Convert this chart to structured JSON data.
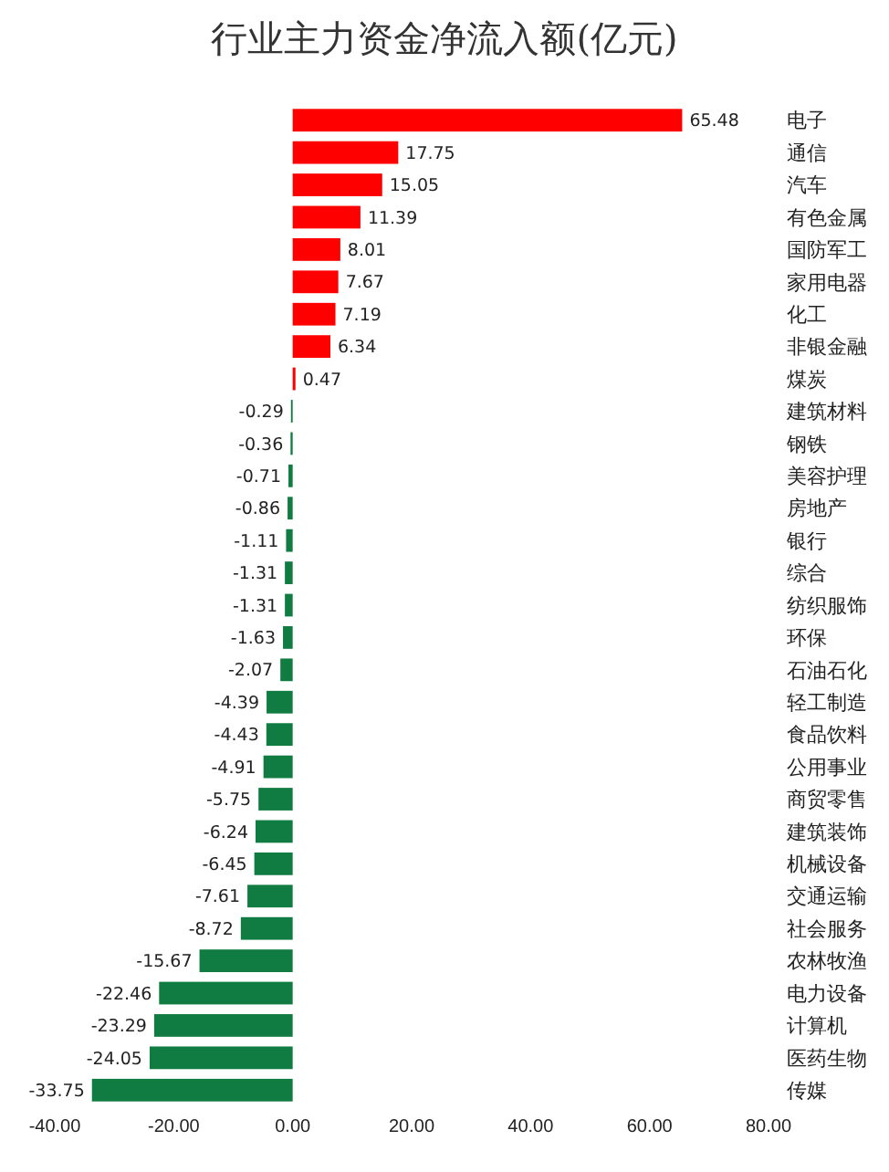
{
  "chart_data": {
    "type": "bar",
    "orientation": "horizontal",
    "title": "行业主力资金净流入额(亿元)",
    "categories": [
      "电子",
      "通信",
      "汽车",
      "有色金属",
      "国防军工",
      "家用电器",
      "化工",
      "非银金融",
      "煤炭",
      "建筑材料",
      "钢铁",
      "美容护理",
      "房地产",
      "银行",
      "综合",
      "纺织服饰",
      "环保",
      "石油石化",
      "轻工制造",
      "食品饮料",
      "公用事业",
      "商贸零售",
      "建筑装饰",
      "机械设备",
      "交通运输",
      "社会服务",
      "农林牧渔",
      "电力设备",
      "计算机",
      "医药生物",
      "传媒"
    ],
    "values": [
      65.48,
      17.75,
      15.05,
      11.39,
      8.01,
      7.67,
      7.19,
      6.34,
      0.47,
      -0.29,
      -0.36,
      -0.71,
      -0.86,
      -1.11,
      -1.31,
      -1.31,
      -1.63,
      -2.07,
      -4.39,
      -4.43,
      -4.91,
      -5.75,
      -6.24,
      -6.45,
      -7.61,
      -8.72,
      -15.67,
      -22.46,
      -23.29,
      -24.05,
      -33.75
    ],
    "colors": [
      "#ff0000",
      "#ff0000",
      "#ff0000",
      "#ff0000",
      "#ff0000",
      "#ff0000",
      "#ff0000",
      "#ff0000",
      "#ff0000",
      "#107c41",
      "#107c41",
      "#107c41",
      "#107c41",
      "#107c41",
      "#107c41",
      "#107c41",
      "#107c41",
      "#107c41",
      "#107c41",
      "#107c41",
      "#107c41",
      "#107c41",
      "#107c41",
      "#107c41",
      "#107c41",
      "#107c41",
      "#107c41",
      "#107c41",
      "#107c41",
      "#107c41",
      "#107c41"
    ],
    "xlim": [
      -40,
      80
    ],
    "xticks": [
      {
        "value": -40,
        "label": "-40.00"
      },
      {
        "value": -20,
        "label": "-20.00"
      },
      {
        "value": 0,
        "label": "0.00"
      },
      {
        "value": 20,
        "label": "20.00"
      },
      {
        "value": 40,
        "label": "40.00"
      },
      {
        "value": 60,
        "label": "60.00"
      },
      {
        "value": 80,
        "label": "80.00"
      }
    ],
    "data_labels": true,
    "grid": false
  }
}
